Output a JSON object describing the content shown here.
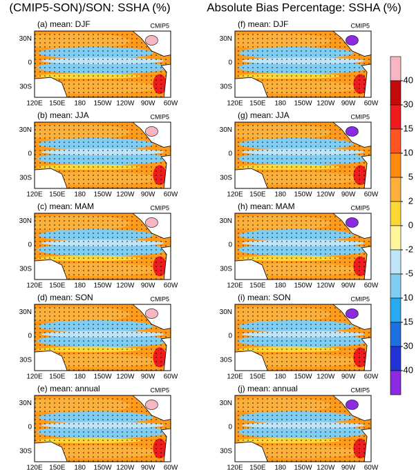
{
  "titles": [
    "(CMIP5-SON)/SON: SSHA (%)",
    "Absolute Bias Percentage: SSHA (%)"
  ],
  "panels": [
    {
      "label": "(a) mean: DJF",
      "tag": "CMIP5"
    },
    {
      "label": "(b) mean: JJA",
      "tag": "CMIP5"
    },
    {
      "label": "(c) mean: MAM",
      "tag": "CMIP5"
    },
    {
      "label": "(d) mean: SON",
      "tag": "CMIP5"
    },
    {
      "label": "(e) mean: annual",
      "tag": "CMIP5"
    },
    {
      "label": "(f) mean: DJF",
      "tag": "CMIP5"
    },
    {
      "label": "(g) mean: JJA",
      "tag": "CMIP5"
    },
    {
      "label": "(h) mean: MAM",
      "tag": "CMIP5"
    },
    {
      "label": "(i) mean: SON",
      "tag": "CMIP5"
    },
    {
      "label": "(j) mean: annual",
      "tag": "CMIP5"
    }
  ],
  "lat_ticks": [
    "30N",
    "0",
    "30S"
  ],
  "lon_ticks": [
    "120E",
    "150E",
    "180",
    "150W",
    "120W",
    "90W",
    "60W"
  ],
  "colorbar": {
    "ticks": [
      40,
      30,
      15,
      10,
      5,
      2,
      0,
      -2,
      -5,
      -10,
      -15,
      -30,
      -40
    ],
    "colors": [
      "#f7b6c2",
      "#c40a0a",
      "#ee1c1c",
      "#ff5522",
      "#ff8a10",
      "#fbb03b",
      "#fdd835",
      "#fff59d",
      "#bfe3f7",
      "#7fcdf2",
      "#29a9ef",
      "#1e6fe0",
      "#2233d6",
      "#8a2be2"
    ]
  }
}
